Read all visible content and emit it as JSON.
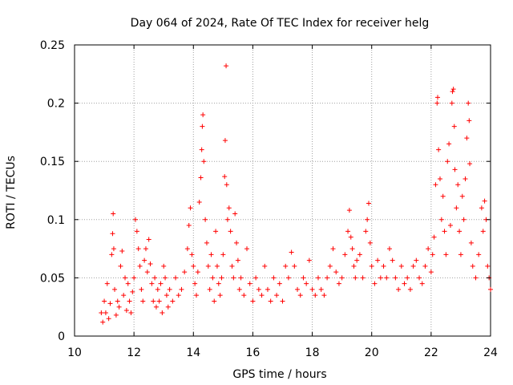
{
  "chart_data": {
    "type": "scatter",
    "title": "Day 064 of 2024, Rate Of TEC Index for receiver helg",
    "xlabel": "GPS time / hours",
    "ylabel": "ROTI / TECUs",
    "xlim": [
      10,
      24
    ],
    "ylim": [
      0,
      0.25
    ],
    "xticks": [
      10,
      12,
      14,
      16,
      18,
      20,
      22,
      24
    ],
    "xtick_labels": [
      "10",
      "12",
      "14",
      "16",
      "18",
      "20",
      "22",
      "24"
    ],
    "yticks": [
      0,
      0.05,
      0.1,
      0.15,
      0.2,
      0.25
    ],
    "ytick_labels": [
      "0",
      "0.05",
      "0.1",
      "0.15",
      "0.2",
      "0.25"
    ],
    "grid": true,
    "marker": "+",
    "color": "#ff0000",
    "series": [
      {
        "name": "ROTI",
        "points": [
          [
            10.9,
            0.02
          ],
          [
            10.95,
            0.012
          ],
          [
            11.0,
            0.03
          ],
          [
            11.05,
            0.02
          ],
          [
            11.1,
            0.045
          ],
          [
            11.15,
            0.015
          ],
          [
            11.2,
            0.028
          ],
          [
            11.25,
            0.07
          ],
          [
            11.28,
            0.088
          ],
          [
            11.3,
            0.105
          ],
          [
            11.32,
            0.075
          ],
          [
            11.35,
            0.04
          ],
          [
            11.4,
            0.018
          ],
          [
            11.45,
            0.03
          ],
          [
            11.5,
            0.025
          ],
          [
            11.55,
            0.06
          ],
          [
            11.6,
            0.073
          ],
          [
            11.65,
            0.035
          ],
          [
            11.7,
            0.05
          ],
          [
            11.75,
            0.022
          ],
          [
            11.8,
            0.045
          ],
          [
            11.85,
            0.03
          ],
          [
            11.9,
            0.02
          ],
          [
            11.95,
            0.038
          ],
          [
            12.0,
            0.05
          ],
          [
            12.05,
            0.1
          ],
          [
            12.1,
            0.09
          ],
          [
            12.15,
            0.075
          ],
          [
            12.2,
            0.06
          ],
          [
            12.25,
            0.04
          ],
          [
            12.3,
            0.03
          ],
          [
            12.35,
            0.065
          ],
          [
            12.4,
            0.075
          ],
          [
            12.45,
            0.055
          ],
          [
            12.5,
            0.083
          ],
          [
            12.55,
            0.062
          ],
          [
            12.6,
            0.045
          ],
          [
            12.65,
            0.03
          ],
          [
            12.7,
            0.05
          ],
          [
            12.75,
            0.025
          ],
          [
            12.8,
            0.04
          ],
          [
            12.85,
            0.03
          ],
          [
            12.9,
            0.045
          ],
          [
            12.95,
            0.02
          ],
          [
            13.0,
            0.06
          ],
          [
            13.05,
            0.05
          ],
          [
            13.1,
            0.035
          ],
          [
            13.15,
            0.025
          ],
          [
            13.2,
            0.04
          ],
          [
            13.3,
            0.03
          ],
          [
            13.4,
            0.05
          ],
          [
            13.5,
            0.035
          ],
          [
            13.6,
            0.04
          ],
          [
            13.7,
            0.055
          ],
          [
            13.8,
            0.075
          ],
          [
            13.85,
            0.095
          ],
          [
            13.9,
            0.11
          ],
          [
            13.95,
            0.07
          ],
          [
            14.0,
            0.06
          ],
          [
            14.05,
            0.045
          ],
          [
            14.1,
            0.035
          ],
          [
            14.15,
            0.055
          ],
          [
            14.2,
            0.115
          ],
          [
            14.25,
            0.136
          ],
          [
            14.28,
            0.16
          ],
          [
            14.3,
            0.18
          ],
          [
            14.32,
            0.19
          ],
          [
            14.35,
            0.15
          ],
          [
            14.4,
            0.1
          ],
          [
            14.45,
            0.08
          ],
          [
            14.5,
            0.06
          ],
          [
            14.55,
            0.04
          ],
          [
            14.6,
            0.07
          ],
          [
            14.65,
            0.05
          ],
          [
            14.7,
            0.03
          ],
          [
            14.75,
            0.09
          ],
          [
            14.8,
            0.06
          ],
          [
            14.85,
            0.045
          ],
          [
            14.9,
            0.035
          ],
          [
            14.95,
            0.05
          ],
          [
            15.0,
            0.07
          ],
          [
            15.05,
            0.137
          ],
          [
            15.07,
            0.168
          ],
          [
            15.1,
            0.232
          ],
          [
            15.12,
            0.13
          ],
          [
            15.15,
            0.1
          ],
          [
            15.2,
            0.11
          ],
          [
            15.25,
            0.09
          ],
          [
            15.3,
            0.06
          ],
          [
            15.35,
            0.05
          ],
          [
            15.4,
            0.105
          ],
          [
            15.45,
            0.08
          ],
          [
            15.5,
            0.065
          ],
          [
            15.55,
            0.04
          ],
          [
            15.6,
            0.05
          ],
          [
            15.7,
            0.035
          ],
          [
            15.8,
            0.075
          ],
          [
            15.9,
            0.045
          ],
          [
            16.0,
            0.03
          ],
          [
            16.1,
            0.05
          ],
          [
            16.2,
            0.04
          ],
          [
            16.3,
            0.035
          ],
          [
            16.4,
            0.06
          ],
          [
            16.5,
            0.04
          ],
          [
            16.6,
            0.03
          ],
          [
            16.7,
            0.05
          ],
          [
            16.8,
            0.035
          ],
          [
            16.9,
            0.045
          ],
          [
            17.0,
            0.03
          ],
          [
            17.1,
            0.06
          ],
          [
            17.2,
            0.05
          ],
          [
            17.3,
            0.072
          ],
          [
            17.4,
            0.06
          ],
          [
            17.5,
            0.04
          ],
          [
            17.6,
            0.035
          ],
          [
            17.7,
            0.05
          ],
          [
            17.8,
            0.045
          ],
          [
            17.9,
            0.065
          ],
          [
            18.0,
            0.04
          ],
          [
            18.1,
            0.035
          ],
          [
            18.2,
            0.05
          ],
          [
            18.3,
            0.04
          ],
          [
            18.4,
            0.035
          ],
          [
            18.5,
            0.05
          ],
          [
            18.6,
            0.06
          ],
          [
            18.7,
            0.075
          ],
          [
            18.8,
            0.055
          ],
          [
            18.9,
            0.045
          ],
          [
            19.0,
            0.05
          ],
          [
            19.1,
            0.07
          ],
          [
            19.2,
            0.09
          ],
          [
            19.25,
            0.108
          ],
          [
            19.3,
            0.085
          ],
          [
            19.35,
            0.075
          ],
          [
            19.4,
            0.06
          ],
          [
            19.45,
            0.05
          ],
          [
            19.5,
            0.065
          ],
          [
            19.6,
            0.07
          ],
          [
            19.7,
            0.05
          ],
          [
            19.8,
            0.09
          ],
          [
            19.85,
            0.1
          ],
          [
            19.9,
            0.114
          ],
          [
            19.95,
            0.08
          ],
          [
            20.0,
            0.06
          ],
          [
            20.1,
            0.045
          ],
          [
            20.2,
            0.065
          ],
          [
            20.3,
            0.05
          ],
          [
            20.4,
            0.06
          ],
          [
            20.5,
            0.05
          ],
          [
            20.6,
            0.075
          ],
          [
            20.7,
            0.065
          ],
          [
            20.8,
            0.05
          ],
          [
            20.9,
            0.04
          ],
          [
            21.0,
            0.06
          ],
          [
            21.1,
            0.045
          ],
          [
            21.2,
            0.05
          ],
          [
            21.3,
            0.04
          ],
          [
            21.4,
            0.06
          ],
          [
            21.5,
            0.065
          ],
          [
            21.6,
            0.05
          ],
          [
            21.7,
            0.045
          ],
          [
            21.8,
            0.06
          ],
          [
            21.9,
            0.075
          ],
          [
            22.0,
            0.055
          ],
          [
            22.05,
            0.07
          ],
          [
            22.1,
            0.085
          ],
          [
            22.15,
            0.13
          ],
          [
            22.2,
            0.2
          ],
          [
            22.22,
            0.205
          ],
          [
            22.25,
            0.16
          ],
          [
            22.3,
            0.135
          ],
          [
            22.35,
            0.1
          ],
          [
            22.4,
            0.12
          ],
          [
            22.45,
            0.09
          ],
          [
            22.5,
            0.07
          ],
          [
            22.55,
            0.15
          ],
          [
            22.6,
            0.165
          ],
          [
            22.65,
            0.095
          ],
          [
            22.7,
            0.2
          ],
          [
            22.72,
            0.21
          ],
          [
            22.75,
            0.212
          ],
          [
            22.78,
            0.18
          ],
          [
            22.8,
            0.143
          ],
          [
            22.85,
            0.11
          ],
          [
            22.9,
            0.13
          ],
          [
            22.95,
            0.09
          ],
          [
            23.0,
            0.07
          ],
          [
            23.05,
            0.12
          ],
          [
            23.1,
            0.1
          ],
          [
            23.15,
            0.135
          ],
          [
            23.2,
            0.17
          ],
          [
            23.25,
            0.2
          ],
          [
            23.28,
            0.185
          ],
          [
            23.3,
            0.148
          ],
          [
            23.35,
            0.08
          ],
          [
            23.4,
            0.06
          ],
          [
            23.5,
            0.05
          ],
          [
            23.6,
            0.07
          ],
          [
            23.7,
            0.11
          ],
          [
            23.75,
            0.09
          ],
          [
            23.8,
            0.116
          ],
          [
            23.85,
            0.1
          ],
          [
            23.9,
            0.06
          ],
          [
            23.95,
            0.05
          ],
          [
            24.0,
            0.04
          ]
        ]
      }
    ]
  }
}
